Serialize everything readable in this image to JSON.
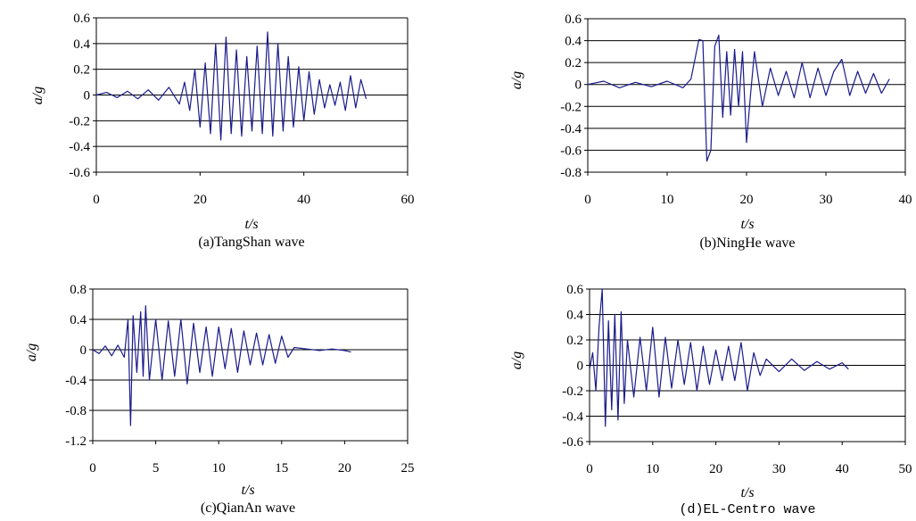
{
  "figure": {
    "series_color": "#1a1a8c",
    "axis_color": "#000000"
  },
  "chart_data": [
    {
      "type": "line",
      "caption": "(a)TangShan wave",
      "xlabel": "t/s",
      "ylabel": "a/g",
      "xlim": [
        0,
        60
      ],
      "ylim": [
        -0.6,
        0.6
      ],
      "xticks": [
        0,
        20,
        40,
        60
      ],
      "xtick_labels": [
        "0",
        "20",
        "40",
        "60"
      ],
      "yticks": [
        -0.6,
        -0.4,
        -0.2,
        0,
        0.2,
        0.4,
        0.6
      ],
      "ytick_labels": [
        "-0.6",
        "-0.4",
        "-0.2",
        "0",
        "0.2",
        "0.4",
        "0.6"
      ],
      "grid": "horizontal",
      "x": [
        0,
        2,
        4,
        6,
        8,
        10,
        12,
        14,
        16,
        17,
        18,
        19,
        20,
        21,
        22,
        23,
        24,
        25,
        26,
        27,
        28,
        29,
        30,
        31,
        32,
        33,
        34,
        35,
        36,
        37,
        38,
        39,
        40,
        41,
        42,
        43,
        44,
        45,
        46,
        47,
        48,
        49,
        50,
        51,
        52
      ],
      "y": [
        0,
        0.02,
        -0.02,
        0.03,
        -0.03,
        0.04,
        -0.04,
        0.06,
        -0.07,
        0.1,
        -0.12,
        0.2,
        -0.25,
        0.25,
        -0.3,
        0.4,
        -0.35,
        0.45,
        -0.3,
        0.35,
        -0.32,
        0.3,
        -0.28,
        0.38,
        -0.3,
        0.49,
        -0.32,
        0.4,
        -0.28,
        0.3,
        -0.25,
        0.22,
        -0.2,
        0.18,
        -0.15,
        0.12,
        -0.1,
        0.08,
        -0.08,
        0.1,
        -0.12,
        0.15,
        -0.1,
        0.12,
        -0.03
      ]
    },
    {
      "type": "line",
      "caption": "(b)NingHe wave",
      "xlabel": "t/s",
      "ylabel": "a/g",
      "xlim": [
        0,
        40
      ],
      "ylim": [
        -0.8,
        0.6
      ],
      "xticks": [
        0,
        10,
        20,
        30,
        40
      ],
      "xtick_labels": [
        "0",
        "10",
        "20",
        "30",
        "40"
      ],
      "yticks": [
        -0.8,
        -0.6,
        -0.4,
        -0.2,
        0,
        0.2,
        0.4,
        0.6
      ],
      "ytick_labels": [
        "-0.8",
        "-0.6",
        "-0.4",
        "-0.2",
        "0",
        "0.2",
        "0.4",
        "0.6"
      ],
      "grid": "horizontal",
      "x": [
        0,
        2,
        4,
        6,
        8,
        10,
        12,
        13,
        14,
        14.5,
        15,
        15.5,
        16,
        16.5,
        17,
        17.5,
        18,
        18.5,
        19,
        19.5,
        20,
        20.5,
        21,
        22,
        23,
        24,
        25,
        26,
        27,
        28,
        29,
        30,
        31,
        32,
        33,
        34,
        35,
        36,
        37,
        38
      ],
      "y": [
        0,
        0.03,
        -0.03,
        0.02,
        -0.02,
        0.03,
        -0.03,
        0.05,
        0.41,
        0.4,
        -0.7,
        -0.6,
        0.35,
        0.45,
        -0.3,
        0.3,
        -0.28,
        0.32,
        -0.2,
        0.3,
        -0.53,
        -0.1,
        0.3,
        -0.2,
        0.15,
        -0.1,
        0.12,
        -0.12,
        0.2,
        -0.12,
        0.15,
        -0.1,
        0.12,
        0.23,
        -0.1,
        0.12,
        -0.08,
        0.1,
        -0.08,
        0.05
      ]
    },
    {
      "type": "line",
      "caption": "(c)QianAn wave",
      "xlabel": "t/s",
      "ylabel": "a/g",
      "xlim": [
        0,
        25
      ],
      "ylim": [
        -1.2,
        0.8
      ],
      "xticks": [
        0,
        5,
        10,
        15,
        20,
        25
      ],
      "xtick_labels": [
        "0",
        "5",
        "10",
        "15",
        "20",
        "25"
      ],
      "yticks": [
        -1.2,
        -0.8,
        -0.4,
        0,
        0.4,
        0.8
      ],
      "ytick_labels": [
        "-1.2",
        "-0.8",
        "-0.4",
        "0",
        "0.4",
        "0.8"
      ],
      "grid": "horizontal",
      "x": [
        0,
        0.5,
        1,
        1.5,
        2,
        2.5,
        2.8,
        3,
        3.2,
        3.5,
        3.8,
        4,
        4.2,
        4.5,
        5,
        5.5,
        6,
        6.5,
        7,
        7.5,
        8,
        8.5,
        9,
        9.5,
        10,
        10.5,
        11,
        11.5,
        12,
        12.5,
        13,
        13.5,
        14,
        14.5,
        15,
        15.5,
        16,
        17,
        18,
        19,
        20,
        20.5
      ],
      "y": [
        0,
        -0.05,
        0.05,
        -0.08,
        0.06,
        -0.1,
        0.4,
        -1.0,
        0.45,
        -0.3,
        0.5,
        -0.35,
        0.58,
        -0.4,
        0.4,
        -0.4,
        0.38,
        -0.35,
        0.4,
        -0.45,
        0.35,
        -0.3,
        0.3,
        -0.35,
        0.3,
        -0.25,
        0.28,
        -0.3,
        0.25,
        -0.2,
        0.22,
        -0.2,
        0.2,
        -0.18,
        0.18,
        -0.1,
        0.03,
        0.01,
        -0.01,
        0.01,
        -0.01,
        -0.03
      ]
    },
    {
      "type": "line",
      "caption": "(d)EL-Centro wave",
      "xlabel": "t/s",
      "ylabel": "a/g",
      "xlim": [
        0,
        50
      ],
      "ylim": [
        -0.6,
        0.6
      ],
      "xticks": [
        0,
        10,
        20,
        30,
        40,
        50
      ],
      "xtick_labels": [
        "0",
        "10",
        "20",
        "30",
        "40",
        "50"
      ],
      "yticks": [
        -0.6,
        -0.4,
        -0.2,
        0,
        0.2,
        0.4,
        0.6
      ],
      "ytick_labels": [
        "-0.6",
        "-0.4",
        "-0.2",
        "0",
        "0.2",
        "0.4",
        "0.6"
      ],
      "grid": "horizontal",
      "x": [
        0,
        0.5,
        1,
        1.5,
        2,
        2.5,
        3,
        3.5,
        4,
        4.5,
        5,
        5.5,
        6,
        7,
        8,
        9,
        10,
        11,
        12,
        13,
        14,
        15,
        16,
        17,
        18,
        19,
        20,
        21,
        22,
        23,
        24,
        25,
        26,
        27,
        28,
        30,
        32,
        34,
        36,
        38,
        40,
        41
      ],
      "y": [
        -0.03,
        0.1,
        -0.2,
        0.3,
        0.6,
        -0.48,
        0.35,
        -0.35,
        0.4,
        -0.43,
        0.42,
        -0.3,
        0.2,
        -0.25,
        0.22,
        -0.2,
        0.3,
        -0.25,
        0.22,
        -0.18,
        0.2,
        -0.15,
        0.18,
        -0.2,
        0.15,
        -0.15,
        0.12,
        -0.12,
        0.15,
        -0.12,
        0.18,
        -0.2,
        0.1,
        -0.08,
        0.05,
        -0.05,
        0.05,
        -0.04,
        0.03,
        -0.03,
        0.02,
        -0.03
      ]
    }
  ]
}
